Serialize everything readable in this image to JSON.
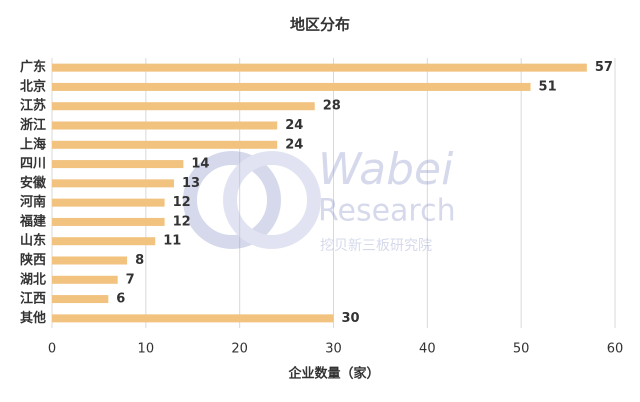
{
  "chart_data": {
    "type": "barh",
    "title": "地区分布",
    "categories": [
      "广东",
      "北京",
      "江苏",
      "浙江",
      "上海",
      "四川",
      "安徽",
      "河南",
      "福建",
      "山东",
      "陕西",
      "湖北",
      "江西",
      "其他"
    ],
    "values": [
      57,
      51,
      28,
      24,
      24,
      14,
      13,
      12,
      12,
      11,
      8,
      7,
      6,
      30
    ],
    "color": "#f2c27f",
    "xlim": [
      0,
      60
    ],
    "xticks": [
      0,
      10,
      20,
      30,
      40,
      50,
      60
    ],
    "grid": true,
    "xlabel": "企业数量（家）",
    "watermark": [
      "Wabei",
      "Research",
      "挖贝新三板研究院"
    ]
  }
}
